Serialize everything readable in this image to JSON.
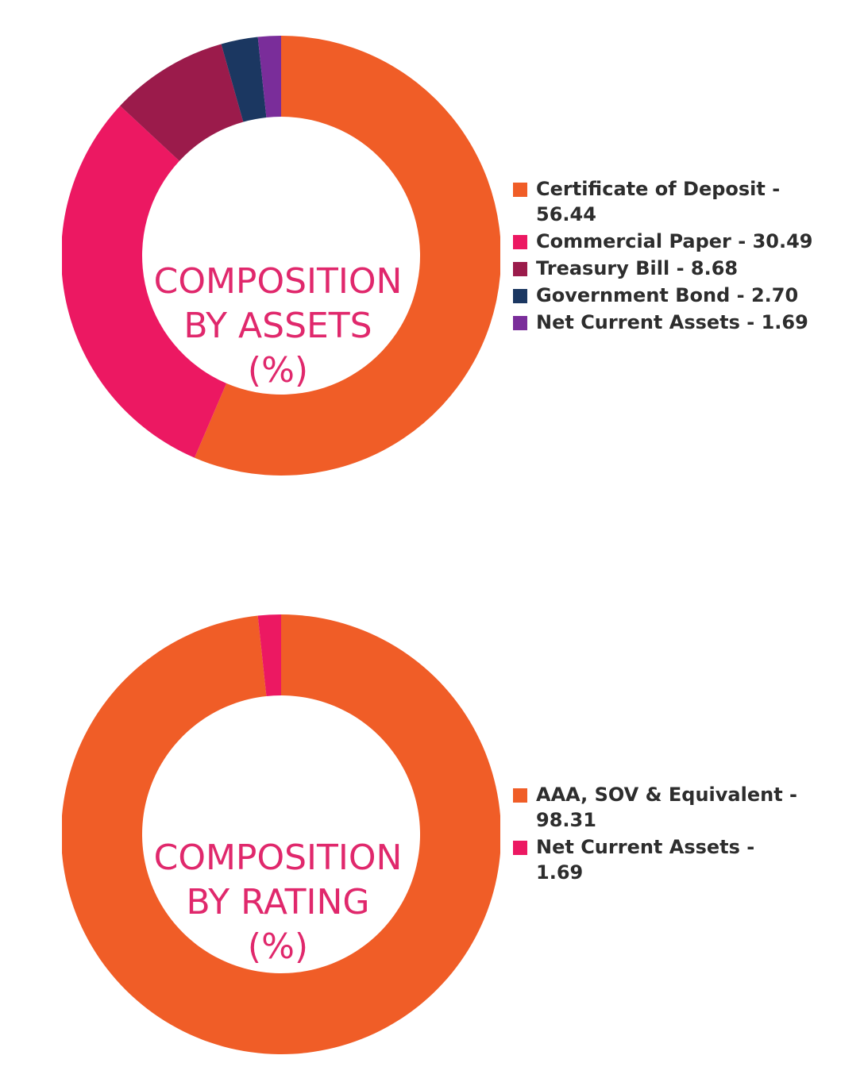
{
  "chart_data": [
    {
      "type": "pie",
      "title_lines": [
        "COMPOSITION",
        "BY ASSETS",
        "(%)"
      ],
      "series": [
        {
          "label": "Certificate of Deposit - 56.44",
          "value": 56.44,
          "color": "#f05d27"
        },
        {
          "label": "Commercial Paper - 30.49",
          "value": 30.49,
          "color": "#ec1862"
        },
        {
          "label": "Treasury Bill - 8.68",
          "value": 8.68,
          "color": "#9b1b4b"
        },
        {
          "label": "Government Bond - 2.70",
          "value": 2.7,
          "color": "#1b3761"
        },
        {
          "label": "Net Current Assets - 1.69",
          "value": 1.69,
          "color": "#7a2d9a"
        }
      ],
      "legend_position": "right"
    },
    {
      "type": "pie",
      "title_lines": [
        "COMPOSITION",
        "BY RATING",
        "(%)"
      ],
      "series": [
        {
          "label": "AAA, SOV & Equivalent - 98.31",
          "value": 98.31,
          "color": "#f05d27"
        },
        {
          "label": "Net Current Assets - 1.69",
          "value": 1.69,
          "color": "#ec1862"
        }
      ],
      "legend_position": "right"
    }
  ],
  "colors": {
    "title": "#e0286c",
    "legend_text": "#2d2d2d"
  }
}
